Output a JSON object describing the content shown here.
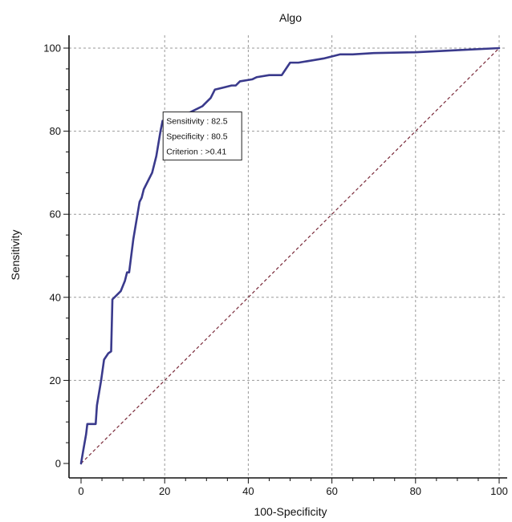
{
  "chart_data": {
    "type": "line",
    "title": "Algo",
    "xlabel": "100-Specificity",
    "ylabel": "Sensitivity",
    "xlim": [
      0,
      100
    ],
    "ylim": [
      0,
      100
    ],
    "xticks": [
      0,
      20,
      40,
      60,
      80,
      100
    ],
    "yticks": [
      0,
      20,
      40,
      60,
      80,
      100
    ],
    "grid": true,
    "colors": {
      "roc": "#3a3a8c",
      "reference": "#7a2a3a",
      "grid": "#999999"
    },
    "series": [
      {
        "x": [
          0,
          0.5,
          1.2,
          1.5,
          3.5,
          3.8,
          4.8,
          5.5,
          6.5,
          7.2,
          7.5,
          9.5,
          10.5,
          11,
          11.5,
          12,
          12.5,
          13,
          13.5,
          14,
          14.5,
          15,
          16,
          17,
          17.5,
          18,
          18.5,
          19,
          19.5,
          20,
          21,
          23,
          25,
          27,
          29,
          31,
          32,
          34,
          36,
          37,
          38,
          41,
          42,
          45,
          48,
          49,
          50,
          52,
          55,
          58,
          60,
          62,
          65,
          70,
          80,
          90,
          100
        ],
        "y": [
          0,
          3,
          7,
          9.5,
          9.5,
          14,
          20,
          25,
          26.5,
          27,
          39.5,
          41.5,
          44,
          46,
          46,
          50,
          54,
          57,
          60,
          63,
          64,
          66,
          68,
          70,
          72,
          74,
          77,
          80,
          82.5,
          82.5,
          82.5,
          83,
          84,
          85,
          86,
          88,
          90,
          90.5,
          91,
          91,
          92,
          92.5,
          93,
          93.5,
          93.5,
          95,
          96.5,
          96.5,
          97,
          97.5,
          98,
          98.5,
          98.5,
          98.8,
          99,
          99.5,
          100
        ]
      },
      {
        "x": [
          0,
          100
        ],
        "y": [
          0,
          100
        ]
      }
    ],
    "annotation": {
      "x": 20,
      "y": 82.5,
      "lines": [
        "Sensitivity : 82.5",
        "Specificity : 80.5",
        "Criterion : >0.41"
      ]
    }
  }
}
